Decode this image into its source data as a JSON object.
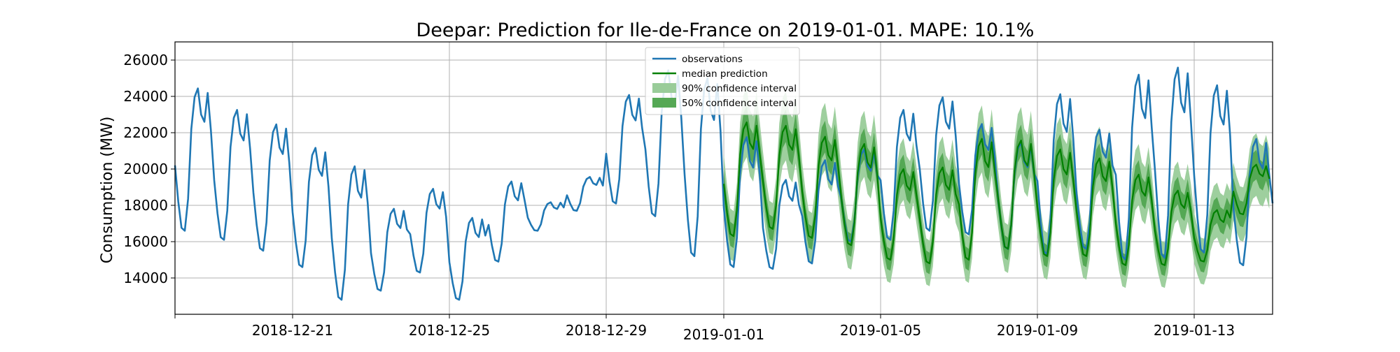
{
  "chart_data": {
    "type": "line",
    "title": "Deepar: Prediction for Ile-de-France on 2019-01-01. MAPE: 10.1%",
    "xlabel": "",
    "ylabel": "Consumption (MW)",
    "x_range": [
      "2018-12-18",
      "2019-01-15"
    ],
    "ylim": [
      12000,
      27000
    ],
    "y_ticks": [
      14000,
      16000,
      18000,
      20000,
      22000,
      24000,
      26000
    ],
    "x_ticks": [
      "2018-12-21",
      "2018-12-25",
      "2018-12-29",
      "2019-01-01",
      "2019-01-05",
      "2019-01-09",
      "2019-01-13"
    ],
    "grid": true,
    "legend_position": "top-center",
    "legend": [
      {
        "label": "observations",
        "type": "line",
        "color": "#1f77b4"
      },
      {
        "label": "median prediction",
        "type": "line",
        "color": "#008000"
      },
      {
        "label": "90% confidence interval",
        "type": "band",
        "color": "#99cc99"
      },
      {
        "label": "50% confidence interval",
        "type": "band",
        "color": "#55a855"
      }
    ],
    "series": [
      {
        "name": "observations",
        "color": "#1f77b4",
        "resolution_hours": 2,
        "start": "2018-12-18T00:00",
        "daily_peaks": [
          24600,
          23400,
          22600,
          21300,
          20300,
          17900,
          19000,
          17400,
          19400,
          18200,
          19600,
          24200,
          25600,
          25200,
          21900,
          19500,
          20600,
          21200,
          23400,
          24100,
          22600,
          21600,
          24300,
          22300,
          25400,
          25800,
          24800,
          21800,
          22400,
          24000
        ],
        "daily_troughs": [
          16600,
          16100,
          15500,
          14600,
          12800,
          13300,
          14300,
          12800,
          14900,
          16600,
          17700,
          18100,
          17400,
          15200,
          14600,
          14500,
          14800,
          16000,
          16100,
          16600,
          16400,
          15600,
          15300,
          15600,
          15000,
          15100,
          15400,
          14700,
          14600,
          18600
        ]
      },
      {
        "name": "median prediction",
        "color": "#008000",
        "resolution_hours": 2,
        "start": "2019-01-01T00:00",
        "daily_peaks": [
          22700,
          22500,
          21900,
          21500,
          20100,
          20200,
          21800,
          21700,
          21200,
          20700,
          19800,
          18900,
          17800,
          20300
        ],
        "daily_troughs": [
          16300,
          16700,
          16200,
          15800,
          15000,
          14800,
          15000,
          15600,
          15200,
          15200,
          14700,
          14700,
          14900,
          17500
        ]
      }
    ]
  }
}
